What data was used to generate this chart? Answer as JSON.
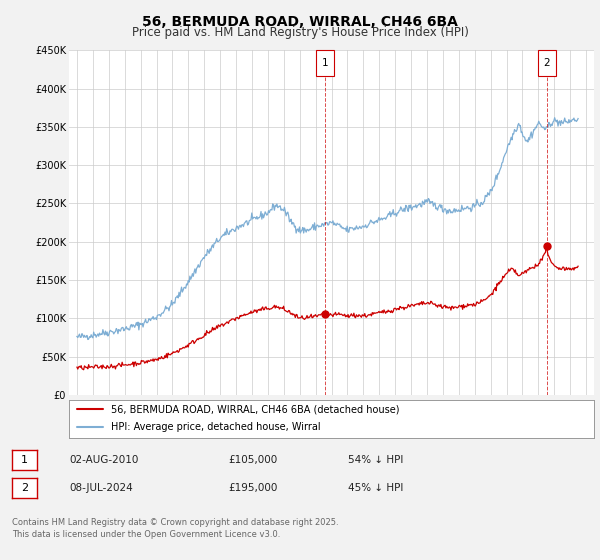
{
  "title": "56, BERMUDA ROAD, WIRRAL, CH46 6BA",
  "subtitle": "Price paid vs. HM Land Registry's House Price Index (HPI)",
  "title_fontsize": 10,
  "subtitle_fontsize": 8.5,
  "background_color": "#f2f2f2",
  "plot_bg_color": "#ffffff",
  "xmin": 1994.5,
  "xmax": 2027.5,
  "ymin": 0,
  "ymax": 450000,
  "yticks": [
    0,
    50000,
    100000,
    150000,
    200000,
    250000,
    300000,
    350000,
    400000,
    450000
  ],
  "ytick_labels": [
    "£0",
    "£50K",
    "£100K",
    "£150K",
    "£200K",
    "£250K",
    "£300K",
    "£350K",
    "£400K",
    "£450K"
  ],
  "xticks": [
    1995,
    1996,
    1997,
    1998,
    1999,
    2000,
    2001,
    2002,
    2003,
    2004,
    2005,
    2006,
    2007,
    2008,
    2009,
    2010,
    2011,
    2012,
    2013,
    2014,
    2015,
    2016,
    2017,
    2018,
    2019,
    2020,
    2021,
    2022,
    2023,
    2024,
    2025,
    2026,
    2027
  ],
  "red_line_color": "#cc0000",
  "blue_line_color": "#7eaed4",
  "marker1_x": 2010.58,
  "marker1_y": 105000,
  "marker2_x": 2024.52,
  "marker2_y": 195000,
  "vline1_x": 2010.58,
  "vline2_x": 2024.52,
  "legend_label_red": "56, BERMUDA ROAD, WIRRAL, CH46 6BA (detached house)",
  "legend_label_blue": "HPI: Average price, detached house, Wirral",
  "table_row1": [
    "1",
    "02-AUG-2010",
    "£105,000",
    "54% ↓ HPI"
  ],
  "table_row2": [
    "2",
    "08-JUL-2024",
    "£195,000",
    "45% ↓ HPI"
  ],
  "footnote": "Contains HM Land Registry data © Crown copyright and database right 2025.\nThis data is licensed under the Open Government Licence v3.0.",
  "footnote_fontsize": 6.0
}
